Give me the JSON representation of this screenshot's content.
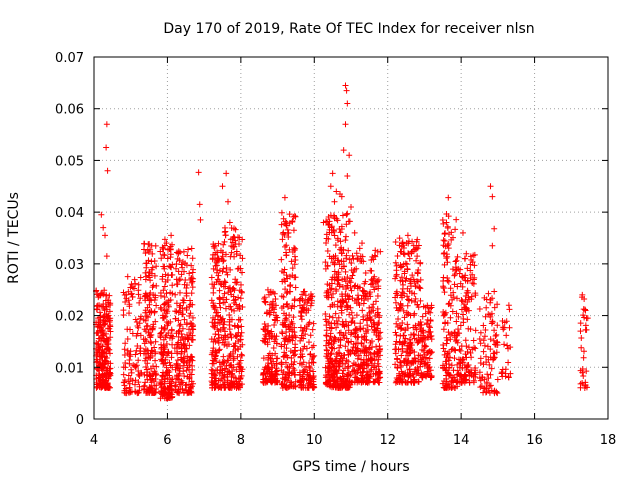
{
  "chart_data": {
    "type": "scatter",
    "title": "Day 170 of 2019, Rate Of TEC Index for receiver nlsn",
    "xlabel": "GPS time / hours",
    "ylabel": "ROTI / TECUs",
    "xlim": [
      4,
      18
    ],
    "ylim": [
      0,
      0.07
    ],
    "xticks": [
      4,
      6,
      8,
      10,
      12,
      14,
      16,
      18
    ],
    "yticks": [
      0,
      0.01,
      0.02,
      0.03,
      0.04,
      0.05,
      0.06,
      0.07
    ],
    "xtick_labels": [
      "4",
      "6",
      "8",
      "10",
      "12",
      "14",
      "16",
      "18"
    ],
    "ytick_labels": [
      "0",
      "0.01",
      "0.02",
      "0.03",
      "0.04",
      "0.05",
      "0.06",
      "0.07"
    ],
    "grid": true,
    "marker": "+",
    "marker_color": "#ff0000",
    "clusters": [
      {
        "x": [
          4.05,
          4.45
        ],
        "y": [
          0.006,
          0.025
        ],
        "n": 260
      },
      {
        "x": [
          4.8,
          5.3
        ],
        "y": [
          0.005,
          0.028
        ],
        "n": 110
      },
      {
        "x": [
          5.35,
          5.7
        ],
        "y": [
          0.005,
          0.034
        ],
        "n": 170
      },
      {
        "x": [
          5.8,
          6.15
        ],
        "y": [
          0.004,
          0.035
        ],
        "n": 200
      },
      {
        "x": [
          6.2,
          6.7
        ],
        "y": [
          0.005,
          0.033
        ],
        "n": 220
      },
      {
        "x": [
          7.2,
          7.55
        ],
        "y": [
          0.006,
          0.034
        ],
        "n": 170
      },
      {
        "x": [
          7.55,
          8.05
        ],
        "y": [
          0.006,
          0.037
        ],
        "n": 210
      },
      {
        "x": [
          8.6,
          9.0
        ],
        "y": [
          0.007,
          0.025
        ],
        "n": 150
      },
      {
        "x": [
          9.1,
          9.5
        ],
        "y": [
          0.006,
          0.04
        ],
        "n": 190
      },
      {
        "x": [
          9.6,
          10.0
        ],
        "y": [
          0.006,
          0.025
        ],
        "n": 140
      },
      {
        "x": [
          10.3,
          11.0
        ],
        "y": [
          0.006,
          0.04
        ],
        "n": 380
      },
      {
        "x": [
          11.0,
          11.8
        ],
        "y": [
          0.007,
          0.033
        ],
        "n": 320
      },
      {
        "x": [
          12.2,
          12.9
        ],
        "y": [
          0.007,
          0.035
        ],
        "n": 280
      },
      {
        "x": [
          12.9,
          13.2
        ],
        "y": [
          0.008,
          0.022
        ],
        "n": 90
      },
      {
        "x": [
          13.5,
          13.9
        ],
        "y": [
          0.006,
          0.04
        ],
        "n": 160
      },
      {
        "x": [
          13.9,
          14.4
        ],
        "y": [
          0.007,
          0.032
        ],
        "n": 140
      },
      {
        "x": [
          14.5,
          15.0
        ],
        "y": [
          0.005,
          0.025
        ],
        "n": 90
      },
      {
        "x": [
          15.1,
          15.35
        ],
        "y": [
          0.008,
          0.022
        ],
        "n": 25
      },
      {
        "x": [
          17.25,
          17.45
        ],
        "y": [
          0.006,
          0.025
        ],
        "n": 30
      }
    ],
    "outliers": [
      {
        "x": 4.2,
        "y": 0.0395
      },
      {
        "x": 4.25,
        "y": 0.037
      },
      {
        "x": 4.3,
        "y": 0.0355
      },
      {
        "x": 4.35,
        "y": 0.057
      },
      {
        "x": 4.33,
        "y": 0.0525
      },
      {
        "x": 4.37,
        "y": 0.048
      },
      {
        "x": 4.35,
        "y": 0.0315
      },
      {
        "x": 6.1,
        "y": 0.0355
      },
      {
        "x": 6.3,
        "y": 0.032
      },
      {
        "x": 6.85,
        "y": 0.0477
      },
      {
        "x": 6.88,
        "y": 0.0415
      },
      {
        "x": 6.9,
        "y": 0.0385
      },
      {
        "x": 7.3,
        "y": 0.0335
      },
      {
        "x": 7.5,
        "y": 0.045
      },
      {
        "x": 7.6,
        "y": 0.0475
      },
      {
        "x": 7.65,
        "y": 0.042
      },
      {
        "x": 7.7,
        "y": 0.038
      },
      {
        "x": 9.2,
        "y": 0.0428
      },
      {
        "x": 9.3,
        "y": 0.036
      },
      {
        "x": 10.25,
        "y": 0.038
      },
      {
        "x": 10.5,
        "y": 0.0475
      },
      {
        "x": 10.45,
        "y": 0.045
      },
      {
        "x": 10.55,
        "y": 0.042
      },
      {
        "x": 10.6,
        "y": 0.044
      },
      {
        "x": 10.7,
        "y": 0.0435
      },
      {
        "x": 10.8,
        "y": 0.052
      },
      {
        "x": 10.85,
        "y": 0.0645
      },
      {
        "x": 10.88,
        "y": 0.0635
      },
      {
        "x": 10.9,
        "y": 0.061
      },
      {
        "x": 10.85,
        "y": 0.057
      },
      {
        "x": 10.95,
        "y": 0.051
      },
      {
        "x": 10.9,
        "y": 0.047
      },
      {
        "x": 10.75,
        "y": 0.043
      },
      {
        "x": 11.0,
        "y": 0.041
      },
      {
        "x": 11.1,
        "y": 0.036
      },
      {
        "x": 11.3,
        "y": 0.034
      },
      {
        "x": 12.55,
        "y": 0.0355
      },
      {
        "x": 12.6,
        "y": 0.031
      },
      {
        "x": 13.65,
        "y": 0.0428
      },
      {
        "x": 13.6,
        "y": 0.038
      },
      {
        "x": 14.05,
        "y": 0.036
      },
      {
        "x": 14.1,
        "y": 0.031
      },
      {
        "x": 14.8,
        "y": 0.045
      },
      {
        "x": 14.85,
        "y": 0.043
      },
      {
        "x": 14.9,
        "y": 0.0368
      },
      {
        "x": 14.85,
        "y": 0.0335
      },
      {
        "x": 15.3,
        "y": 0.022
      },
      {
        "x": 17.3,
        "y": 0.024
      },
      {
        "x": 17.35,
        "y": 0.0232
      }
    ]
  }
}
